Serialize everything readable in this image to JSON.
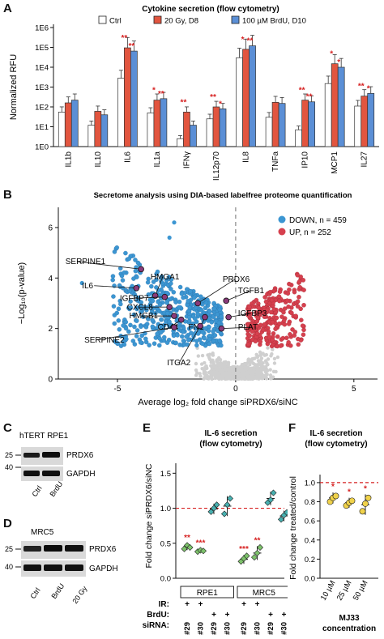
{
  "panels": {
    "A": "A",
    "B": "B",
    "C": "C",
    "D": "D",
    "E": "E",
    "F": "F"
  },
  "colors": {
    "ctrl": "#ffffff",
    "gy": "#e2553f",
    "brdu": "#5b8fd6",
    "down": "#3c96d2",
    "up": "#d6404e",
    "ns": "#cfcfcf",
    "sig": "#d62020",
    "f_fill": "#f0d24a",
    "e_green": "#7dc26b",
    "e_teal": "#47b0b0"
  },
  "chart_data": [
    {
      "panel": "A",
      "type": "bar",
      "title": "Cytokine secretion (flow cytometry)",
      "ylabel": "Normalized RFU",
      "yscale": "log",
      "ylim": [
        1,
        1000000
      ],
      "yticks": [
        "1E0",
        "1E1",
        "1E2",
        "1E3",
        "1E4",
        "1E5",
        "1E6"
      ],
      "categories": [
        "IL1b",
        "IL10",
        "IL6",
        "IL1a",
        "IFNγ",
        "IL12p70",
        "IL8",
        "TNFa",
        "IP10",
        "MCP1",
        "IL27"
      ],
      "legend": [
        "Ctrl",
        "20 Gy, D8",
        "100 µM BrdU, D10"
      ],
      "series": [
        {
          "name": "Ctrl",
          "values": [
            55,
            12,
            2800,
            50,
            2.5,
            25,
            30000,
            30,
            7,
            1500,
            110
          ]
        },
        {
          "name": "20 Gy, D8",
          "values": [
            160,
            60,
            95000,
            220,
            55,
            100,
            80000,
            170,
            220,
            15000,
            350
          ]
        },
        {
          "name": "100 µM BrdU, D10",
          "values": [
            220,
            40,
            65000,
            260,
            12,
            80,
            120000,
            150,
            180,
            10000,
            480
          ]
        }
      ],
      "stars": [
        {
          "cat": "IL6",
          "series": 1,
          "text": "**"
        },
        {
          "cat": "IL6",
          "series": 2,
          "text": "**"
        },
        {
          "cat": "IL1a",
          "series": 1,
          "text": "*"
        },
        {
          "cat": "IL1a",
          "series": 2,
          "text": "**"
        },
        {
          "cat": "IFNγ",
          "series": 1,
          "text": "**"
        },
        {
          "cat": "IL12p70",
          "series": 1,
          "text": "**"
        },
        {
          "cat": "IL12p70",
          "series": 2,
          "text": "*"
        },
        {
          "cat": "IL8",
          "series": 1,
          "text": "*"
        },
        {
          "cat": "IL8",
          "series": 2,
          "text": "**"
        },
        {
          "cat": "IP10",
          "series": 1,
          "text": "**"
        },
        {
          "cat": "IP10",
          "series": 2,
          "text": "**"
        },
        {
          "cat": "MCP1",
          "series": 1,
          "text": "*"
        },
        {
          "cat": "MCP1",
          "series": 2,
          "text": "*"
        },
        {
          "cat": "IL27",
          "series": 1,
          "text": "**"
        },
        {
          "cat": "IL27",
          "series": 2,
          "text": "*"
        }
      ]
    },
    {
      "panel": "B",
      "type": "scatter",
      "title": "Secretome analysis using DIA-based labelfree proteome quantification",
      "xlabel": "Average log₂ fold change siPRDX6/siNC",
      "ylabel": "−Log₁₀(p-value)",
      "xlim": [
        -7.5,
        6
      ],
      "ylim": [
        0,
        6.8
      ],
      "xticks": [
        -5,
        0,
        5
      ],
      "yticks": [
        0,
        2,
        4,
        6
      ],
      "legend": [
        {
          "label": "DOWN, n = 459",
          "group": "down"
        },
        {
          "label": "UP, n = 252",
          "group": "up"
        }
      ],
      "labeled_points": [
        {
          "label": "SERPINE1",
          "x": -4.0,
          "y": 4.35
        },
        {
          "label": "IL6",
          "x": -4.2,
          "y": 3.6
        },
        {
          "label": "HMGA1",
          "x": -3.4,
          "y": 3.3
        },
        {
          "label": "PRDX6",
          "x": -1.6,
          "y": 3.0
        },
        {
          "label": "IGFBP7",
          "x": -3.0,
          "y": 3.25
        },
        {
          "label": "CXCL8",
          "x": -2.8,
          "y": 2.85
        },
        {
          "label": "HMGB1",
          "x": -2.6,
          "y": 2.5
        },
        {
          "label": "CD44",
          "x": -2.3,
          "y": 2.35
        },
        {
          "label": "FN1",
          "x": -1.3,
          "y": 2.45
        },
        {
          "label": "TGFB1",
          "x": -0.4,
          "y": 3.1
        },
        {
          "label": "IGFBP3",
          "x": -0.3,
          "y": 2.45
        },
        {
          "label": "PLAT",
          "x": -0.6,
          "y": 2.0
        },
        {
          "label": "SERPINE2",
          "x": -2.6,
          "y": 2.05
        },
        {
          "label": "ITGA2",
          "x": -1.5,
          "y": 2.1
        }
      ]
    },
    {
      "panel": "E",
      "type": "scatter",
      "title": "IL-6 secretion\n(flow cytometry)",
      "ylabel": "Fold change siPRDX6/siNC",
      "ylim": [
        0,
        1.55
      ],
      "yticks": [
        0.0,
        0.5,
        1.0,
        1.5
      ],
      "groups": [
        {
          "cell": "RPE1",
          "ir": "+",
          "brdu": "",
          "sirna": "#29",
          "values": [
            0.42,
            0.47,
            0.44
          ],
          "mean": 0.45,
          "color": "e_green",
          "star": "**"
        },
        {
          "cell": "RPE1",
          "ir": "+",
          "brdu": "",
          "sirna": "#30",
          "values": [
            0.38,
            0.4,
            0.39
          ],
          "mean": 0.39,
          "color": "e_green",
          "star": "***"
        },
        {
          "cell": "RPE1",
          "ir": "",
          "brdu": "+",
          "sirna": "#29",
          "values": [
            0.95,
            1.0,
            1.05
          ],
          "mean": 0.99,
          "color": "e_teal",
          "star": ""
        },
        {
          "cell": "RPE1",
          "ir": "",
          "brdu": "+",
          "sirna": "#30",
          "values": [
            0.92,
            1.05,
            1.14
          ],
          "mean": 1.03,
          "color": "e_teal",
          "star": ""
        },
        {
          "cell": "MRC5",
          "ir": "+",
          "brdu": "",
          "sirna": "#29",
          "values": [
            0.24,
            0.28,
            0.32
          ],
          "mean": 0.27,
          "color": "e_green",
          "star": "***"
        },
        {
          "cell": "MRC5",
          "ir": "+",
          "brdu": "",
          "sirna": "#30",
          "values": [
            0.3,
            0.36,
            0.44
          ],
          "mean": 0.36,
          "color": "e_green",
          "star": "**"
        },
        {
          "cell": "MRC5",
          "ir": "",
          "brdu": "+",
          "sirna": "#29",
          "values": [
            1.08,
            1.12,
            1.22
          ],
          "mean": 1.14,
          "color": "e_teal",
          "star": ""
        },
        {
          "cell": "MRC5",
          "ir": "",
          "brdu": "+",
          "sirna": "#30",
          "values": [
            0.84,
            0.9,
            0.94
          ],
          "mean": 0.89,
          "color": "e_teal",
          "star": ""
        }
      ],
      "row_labels": {
        "ir": "IR:",
        "brdu": "BrdU:",
        "sirna": "siRNA:"
      },
      "cells": [
        "RPE1",
        "MRC5"
      ]
    },
    {
      "panel": "F",
      "type": "scatter",
      "title": "IL-6 secretion\n(flow cytometry)",
      "ylabel": "Fold change treated/control",
      "xlabel": "MJ33\nconcentration",
      "ylim": [
        0,
        1.05
      ],
      "yticks": [
        0.0,
        0.2,
        0.4,
        0.6,
        0.8,
        1.0
      ],
      "categories": [
        "10 µM",
        "25 µM",
        "50 µM"
      ],
      "groups": [
        {
          "values": [
            0.8,
            0.84,
            0.86
          ],
          "mean": 0.84,
          "star": "*"
        },
        {
          "values": [
            0.76,
            0.79,
            0.81
          ],
          "mean": 0.79,
          "star": "*"
        },
        {
          "values": [
            0.7,
            0.78,
            0.84
          ],
          "mean": 0.77,
          "star": "*"
        }
      ]
    }
  ],
  "blot_c": {
    "title": "hTERT RPE1",
    "markers": [
      "25",
      "40"
    ],
    "bands": [
      "PRDX6",
      "GAPDH"
    ],
    "lanes": [
      "Ctrl",
      "BrdU"
    ]
  },
  "blot_d": {
    "title": "MRC5",
    "markers": [
      "25",
      "40"
    ],
    "bands": [
      "PRDX6",
      "GAPDH"
    ],
    "lanes": [
      "Ctrl",
      "BrdU",
      "20 Gy"
    ]
  }
}
